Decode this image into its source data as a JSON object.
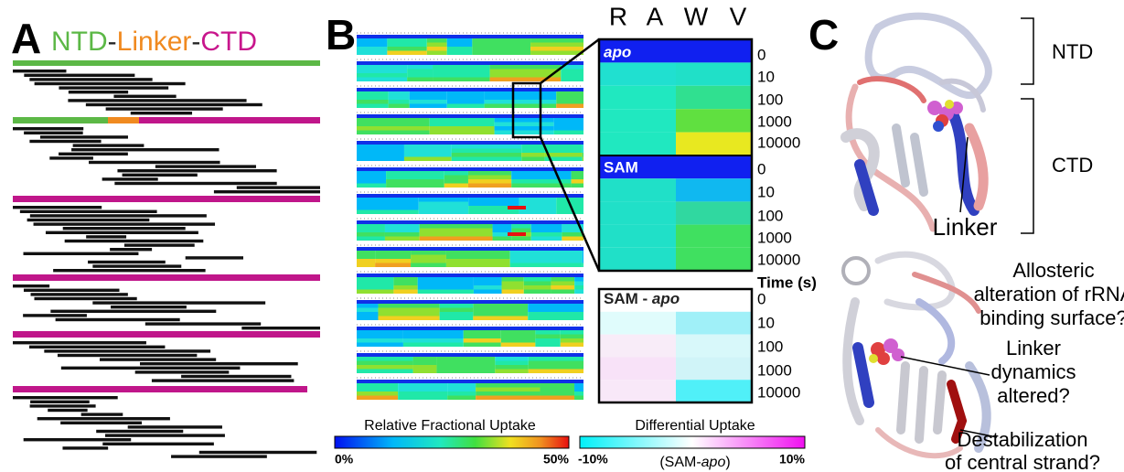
{
  "panel_a": {
    "label": "A",
    "title": [
      "NTD",
      "-",
      "Linker",
      "-",
      "CTD"
    ]
  },
  "panel_b": {
    "label": "B",
    "columns": [
      "R",
      "A",
      "W",
      "V"
    ],
    "insets": [
      "apo",
      "SAM"
    ],
    "difference_title": [
      "SAM - ",
      "apo"
    ],
    "time_labels": [
      "0",
      "10",
      "100",
      "1000",
      "10000"
    ],
    "time_axis_label": "Time (s)",
    "uptake_scale": {
      "title": "Relative Fractional Uptake",
      "min": "0%",
      "max": "50%"
    },
    "difference_scale": {
      "title": "Differential Uptake",
      "min": "-10%",
      "max": "10%",
      "subtitle": [
        "(SAM-",
        "apo",
        ")"
      ]
    }
  },
  "panel_c": {
    "label": "C",
    "top": {
      "ntd": "NTD",
      "ctd": "CTD",
      "linker": "Linker"
    },
    "bottom": {
      "allosteric": [
        "Allosteric",
        "alteration of rRNA",
        "binding surface?"
      ],
      "linker": [
        "Linker",
        "dynamics",
        "altered?"
      ],
      "strand": [
        "Destabilization",
        "of central strand?"
      ]
    }
  }
}
